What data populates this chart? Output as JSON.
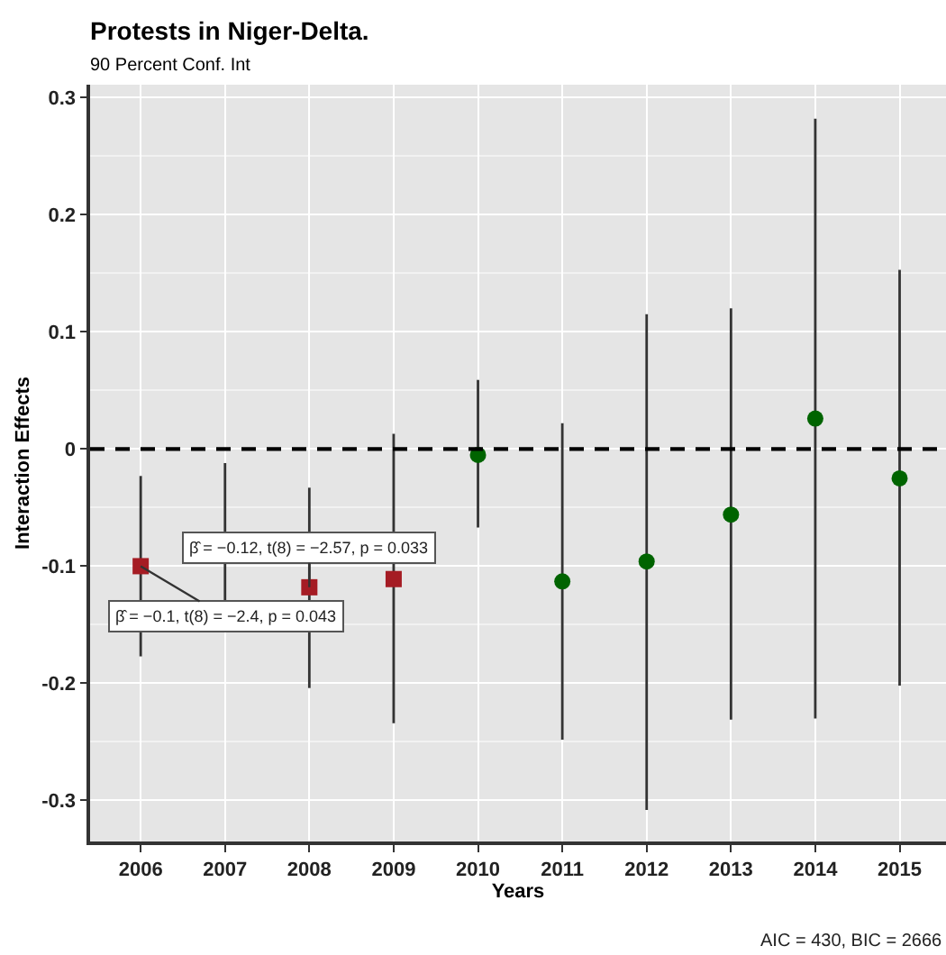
{
  "chart_data": {
    "type": "scatter",
    "title": "Protests in Niger-Delta.",
    "subtitle": "90 Percent Conf. Int",
    "xlabel": "Years",
    "ylabel": "Interaction Effects",
    "xlim": [
      2005.4,
      2015.55
    ],
    "xticks": [
      2006,
      2007,
      2008,
      2009,
      2010,
      2011,
      2012,
      2013,
      2014,
      2015
    ],
    "ylim": [
      -0.335,
      0.311
    ],
    "yticks": [
      -0.3,
      -0.2,
      -0.1,
      0.0,
      0.1,
      0.2,
      0.3
    ],
    "grid": true,
    "series": [
      {
        "color": "#a51c24",
        "marker": "square",
        "x": [
          2006,
          2007,
          2008,
          2009
        ],
        "values": [
          -0.1,
          null,
          -0.118,
          -0.111
        ],
        "errors": [
          [
            -0.177,
            -0.023
          ],
          null,
          [
            -0.204,
            -0.033
          ],
          [
            -0.234,
            0.013
          ]
        ]
      },
      {
        "type": "line",
        "color": "#333333",
        "marker": "none",
        "x": [
          2007,
          2007
        ],
        "values": [
          -0.012,
          -0.13
        ]
      },
      {
        "color": "#006400",
        "marker": "circle",
        "x": [
          2010,
          2011,
          2012,
          2013,
          2014,
          2015
        ],
        "values": [
          -0.005,
          -0.113,
          -0.096,
          -0.056,
          0.026,
          -0.025
        ],
        "errors": [
          [
            -0.067,
            0.059
          ],
          [
            -0.248,
            0.022
          ],
          [
            -0.308,
            0.115
          ],
          [
            -0.231,
            0.12
          ],
          [
            -0.23,
            0.282
          ],
          [
            -0.202,
            0.153
          ]
        ]
      }
    ],
    "ref_lines": [
      {
        "axis": "y",
        "value": 0,
        "color": "#000000",
        "line_style": "dashed"
      }
    ],
    "annotations": [
      {
        "text": "β̂ = −0.1, t(8) = −2.4, p = 0.043",
        "x": 2006,
        "y": -0.1
      },
      {
        "text": "β̂ = −0.12, t(8) = −2.57, p = 0.033",
        "x": 2008,
        "y": -0.118
      },
      "AIC = 430, BIC = 2666"
    ]
  }
}
